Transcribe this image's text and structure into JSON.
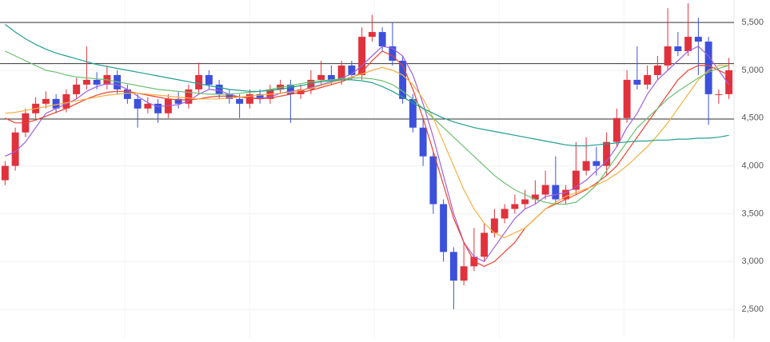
{
  "chart_data": {
    "type": "candlestick",
    "open": [
      3850,
      4000,
      4350,
      4550,
      4650,
      4700,
      4600,
      4750,
      4850,
      4900,
      4850,
      4950,
      4800,
      4700,
      4600,
      4650,
      4550,
      4700,
      4650,
      4800,
      4950,
      4850,
      4750,
      4700,
      4650,
      4750,
      4700,
      4800,
      4850,
      4750,
      4800,
      4900,
      4950,
      4900,
      5050,
      4950,
      5350,
      5400,
      5250,
      5100,
      4700,
      4400,
      4100,
      3600,
      3100,
      2800,
      2950,
      3050,
      3300,
      3450,
      3550,
      3600,
      3650,
      3700,
      3800,
      3650,
      3750,
      3950,
      4050,
      4000,
      4250,
      4500,
      4900,
      4850,
      4950,
      5050,
      5250,
      5200,
      5350,
      5300,
      4750,
      4750
    ],
    "high": [
      4050,
      4400,
      4600,
      4720,
      4780,
      4750,
      4800,
      4920,
      5250,
      4980,
      5050,
      5000,
      4850,
      4750,
      4720,
      4700,
      4750,
      4780,
      4850,
      5080,
      5000,
      4900,
      4800,
      4750,
      4800,
      4800,
      4850,
      4900,
      4900,
      4850,
      5000,
      5100,
      5050,
      5100,
      5100,
      5450,
      5580,
      5450,
      5500,
      5150,
      4750,
      4500,
      4150,
      3650,
      3150,
      3200,
      3350,
      3400,
      3550,
      3600,
      3700,
      3750,
      3850,
      3950,
      4100,
      3800,
      4250,
      4300,
      4200,
      4350,
      4600,
      5000,
      5250,
      5050,
      5150,
      5650,
      5400,
      5700,
      5550,
      5350,
      4800,
      5130
    ],
    "low": [
      3800,
      3950,
      4300,
      4500,
      4600,
      4550,
      4560,
      4700,
      4800,
      4800,
      4800,
      4750,
      4650,
      4400,
      4550,
      4450,
      4500,
      4600,
      4600,
      4750,
      4800,
      4700,
      4650,
      4500,
      4600,
      4650,
      4650,
      4750,
      4450,
      4700,
      4750,
      4850,
      4850,
      4850,
      4900,
      4900,
      5300,
      5200,
      5050,
      4650,
      4350,
      4000,
      3500,
      3000,
      2500,
      2750,
      2900,
      3000,
      3250,
      3400,
      3500,
      3550,
      3600,
      3650,
      3600,
      3600,
      3700,
      3900,
      3900,
      3900,
      4200,
      4450,
      4800,
      4800,
      4900,
      5000,
      5150,
      5150,
      4950,
      4430,
      4650,
      4700
    ],
    "close": [
      4000,
      4350,
      4550,
      4650,
      4700,
      4600,
      4750,
      4850,
      4900,
      4850,
      4950,
      4800,
      4700,
      4600,
      4650,
      4550,
      4700,
      4650,
      4800,
      4950,
      4850,
      4750,
      4700,
      4650,
      4750,
      4700,
      4800,
      4850,
      4750,
      4800,
      4900,
      4950,
      4900,
      5050,
      4950,
      5350,
      5400,
      5250,
      5100,
      4700,
      4400,
      4100,
      3600,
      3100,
      2800,
      2950,
      3050,
      3300,
      3450,
      3550,
      3600,
      3650,
      3700,
      3800,
      3650,
      3750,
      3950,
      4050,
      4000,
      4250,
      4500,
      4900,
      4850,
      4950,
      5050,
      5250,
      5200,
      5350,
      5300,
      4750,
      4750,
      5000
    ],
    "up_color": "#e0323c",
    "down_color": "#3c50dc",
    "series": [
      {
        "color": "#a060e0",
        "values": [
          4100,
          4150,
          4250,
          4400,
          4550,
          4600,
          4650,
          4700,
          4780,
          4830,
          4860,
          4850,
          4800,
          4730,
          4660,
          4620,
          4630,
          4640,
          4680,
          4750,
          4800,
          4790,
          4750,
          4720,
          4710,
          4710,
          4720,
          4760,
          4780,
          4790,
          4820,
          4850,
          4880,
          4920,
          4960,
          5050,
          5150,
          5250,
          5230,
          5150,
          4950,
          4650,
          4300,
          3900,
          3500,
          3200,
          3050,
          3000,
          3150,
          3300,
          3450,
          3550,
          3600,
          3680,
          3700,
          3720,
          3780,
          3850,
          3950,
          4050,
          4200,
          4400,
          4550,
          4750,
          4900,
          5000,
          5100,
          5200,
          5250,
          5150,
          5000,
          4850
        ]
      },
      {
        "color": "#f04030",
        "values": [
          4500,
          4450,
          4450,
          4480,
          4520,
          4560,
          4600,
          4650,
          4700,
          4740,
          4770,
          4780,
          4780,
          4760,
          4740,
          4720,
          4700,
          4690,
          4690,
          4700,
          4720,
          4730,
          4730,
          4720,
          4710,
          4700,
          4710,
          4730,
          4750,
          4770,
          4790,
          4820,
          4850,
          4880,
          4920,
          4980,
          5100,
          5200,
          5150,
          5050,
          4800,
          4500,
          4150,
          3800,
          3450,
          3200,
          3000,
          2950,
          3000,
          3100,
          3200,
          3350,
          3450,
          3550,
          3600,
          3650,
          3700,
          3750,
          3820,
          3900,
          4000,
          4150,
          4300,
          4450,
          4600,
          4750,
          4900,
          5000,
          5050,
          5050,
          5000,
          4950
        ]
      },
      {
        "color": "#f5b040",
        "values": [
          4550,
          4560,
          4580,
          4600,
          4620,
          4640,
          4660,
          4680,
          4700,
          4720,
          4740,
          4750,
          4760,
          4760,
          4750,
          4740,
          4730,
          4720,
          4710,
          4700,
          4700,
          4700,
          4710,
          4720,
          4730,
          4740,
          4750,
          4760,
          4770,
          4790,
          4810,
          4840,
          4870,
          4900,
          4930,
          4960,
          5000,
          5030,
          5000,
          4950,
          4850,
          4700,
          4500,
          4250,
          4000,
          3750,
          3550,
          3400,
          3300,
          3250,
          3300,
          3350,
          3450,
          3550,
          3620,
          3680,
          3720,
          3760,
          3800,
          3850,
          3920,
          4000,
          4100,
          4200,
          4320,
          4450,
          4600,
          4750,
          4900,
          5000,
          5050,
          5050
        ]
      },
      {
        "color": "#6cc070",
        "values": [
          5200,
          5150,
          5100,
          5050,
          5000,
          4980,
          4950,
          4930,
          4920,
          4910,
          4900,
          4880,
          4860,
          4840,
          4820,
          4800,
          4790,
          4780,
          4770,
          4760,
          4750,
          4750,
          4750,
          4760,
          4770,
          4780,
          4800,
          4820,
          4840,
          4860,
          4880,
          4890,
          4900,
          4910,
          4920,
          4920,
          4910,
          4890,
          4850,
          4780,
          4700,
          4600,
          4500,
          4400,
          4300,
          4200,
          4100,
          4000,
          3900,
          3820,
          3750,
          3700,
          3650,
          3620,
          3600,
          3600,
          3620,
          3700,
          3800,
          3950,
          4100,
          4250,
          4400,
          4500,
          4600,
          4700,
          4780,
          4850,
          4920,
          4980,
          5020,
          5050
        ]
      },
      {
        "color": "#20a090",
        "values": [
          5480,
          5400,
          5330,
          5270,
          5220,
          5180,
          5150,
          5120,
          5090,
          5060,
          5040,
          5020,
          5000,
          4980,
          4960,
          4940,
          4920,
          4900,
          4880,
          4860,
          4840,
          4820,
          4800,
          4790,
          4780,
          4780,
          4790,
          4800,
          4820,
          4840,
          4860,
          4880,
          4890,
          4900,
          4900,
          4890,
          4870,
          4830,
          4780,
          4720,
          4660,
          4600,
          4550,
          4500,
          4460,
          4430,
          4400,
          4380,
          4360,
          4340,
          4320,
          4300,
          4280,
          4260,
          4240,
          4220,
          4210,
          4210,
          4220,
          4230,
          4240,
          4250,
          4260,
          4260,
          4270,
          4270,
          4280,
          4280,
          4290,
          4290,
          4300,
          4320
        ]
      }
    ],
    "hlines": [
      5500,
      5070,
      4490
    ],
    "hline_color": "#333333",
    "ylim": [
      2200,
      5735
    ],
    "yticks": [
      {
        "value": 2500,
        "label": "2,500"
      },
      {
        "value": 3000,
        "label": "3,000"
      },
      {
        "value": 3500,
        "label": "3,500"
      },
      {
        "value": 4000,
        "label": "4,000"
      },
      {
        "value": 4500,
        "label": "4,500"
      },
      {
        "value": 5000,
        "label": "5,000"
      },
      {
        "value": 5500,
        "label": "5,500"
      }
    ],
    "grid": true
  }
}
